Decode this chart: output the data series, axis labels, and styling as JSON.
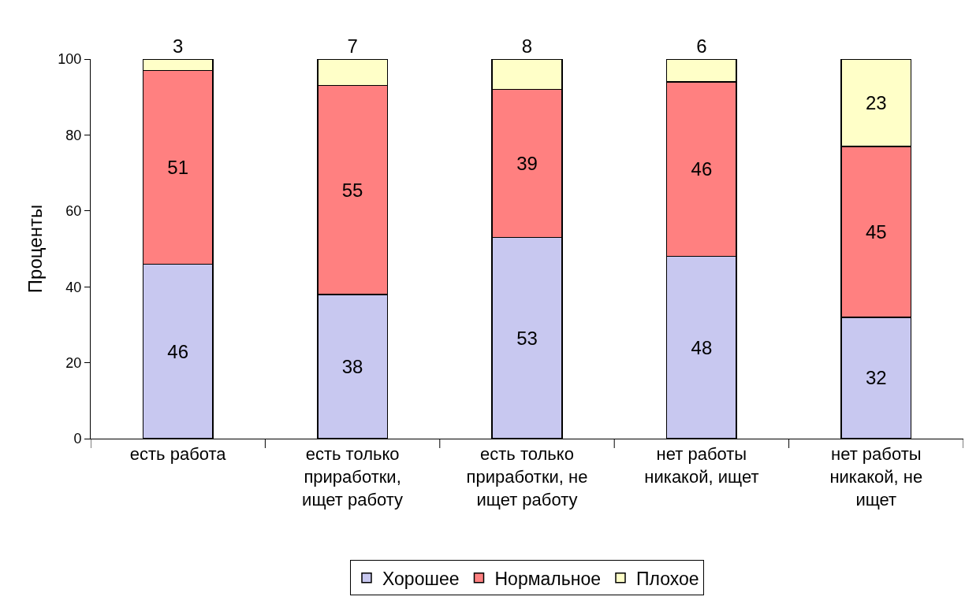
{
  "chart_data": {
    "type": "bar",
    "stacked": true,
    "ylabel": "Проценты",
    "categories": [
      "есть работа",
      "есть только приработки, ищет работу",
      "есть только приработки, не ищет работу",
      "нет работы никакой, ищет",
      "нет работы никакой, не ищет"
    ],
    "series": [
      {
        "name": "Хорошее",
        "color": "#c8c8f0",
        "values": [
          46,
          38,
          53,
          48,
          32
        ]
      },
      {
        "name": "Нормальное",
        "color": "#ff8080",
        "values": [
          51,
          55,
          39,
          46,
          45
        ]
      },
      {
        "name": "Плохое",
        "color": "#ffffc8",
        "values": [
          3,
          7,
          8,
          6,
          23
        ]
      }
    ],
    "ylim": [
      0,
      100
    ],
    "yticks": [
      0,
      20,
      40,
      60,
      80,
      100
    ],
    "data_labels": true,
    "legend": "bottom"
  }
}
